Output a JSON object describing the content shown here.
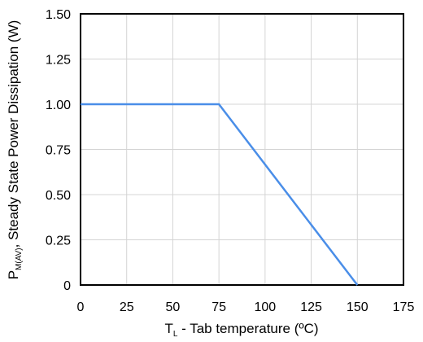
{
  "chart_data": {
    "type": "line",
    "x_axis": {
      "label_symbol": "T",
      "label_subscript": "L",
      "label_rest": " - Tab temperature (ºC)",
      "range": [
        0,
        175
      ],
      "ticks": [
        0,
        25,
        50,
        75,
        100,
        125,
        150,
        175
      ],
      "tick_labels": [
        "0",
        "25",
        "50",
        "75",
        "100",
        "125",
        "150",
        "175"
      ]
    },
    "y_axis": {
      "label_symbol": "P",
      "label_subscript": "M(AV)",
      "label_rest": ", Steady State Power Dissipation (W)",
      "range": [
        0,
        1.5
      ],
      "ticks": [
        0,
        0.25,
        0.5,
        0.75,
        1.0,
        1.25,
        1.5
      ],
      "tick_labels": [
        "0",
        "0.25",
        "0.50",
        "0.75",
        "1.00",
        "1.25",
        "1.50"
      ]
    },
    "grid": true,
    "series": [
      {
        "color": "#4a8ee8",
        "x": [
          0,
          75,
          150
        ],
        "y": [
          1.0,
          1.0,
          0
        ]
      }
    ]
  }
}
